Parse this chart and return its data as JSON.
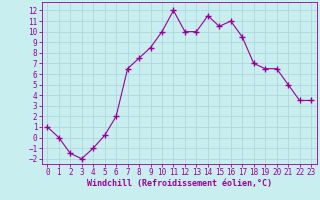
{
  "x": [
    0,
    1,
    2,
    3,
    4,
    5,
    6,
    7,
    8,
    9,
    10,
    11,
    12,
    13,
    14,
    15,
    16,
    17,
    18,
    19,
    20,
    21,
    22,
    23
  ],
  "y": [
    1.0,
    0.0,
    -1.5,
    -2.0,
    -1.0,
    0.2,
    2.0,
    6.5,
    7.5,
    8.5,
    10.0,
    12.0,
    10.0,
    10.0,
    11.5,
    10.5,
    11.0,
    9.5,
    7.0,
    6.5,
    6.5,
    5.0,
    3.5,
    3.5
  ],
  "line_color": "#990099",
  "marker": "+",
  "marker_size": 4,
  "marker_linewidth": 1.0,
  "line_width": 0.8,
  "bg_color": "#c8eef0",
  "grid_color": "#b0d8da",
  "xlabel": "Windchill (Refroidissement éolien,°C)",
  "xlabel_fontsize": 6.0,
  "tick_fontsize": 5.5,
  "ylim": [
    -2.5,
    12.8
  ],
  "xlim": [
    -0.5,
    23.5
  ],
  "yticks": [
    -2,
    -1,
    0,
    1,
    2,
    3,
    4,
    5,
    6,
    7,
    8,
    9,
    10,
    11,
    12
  ],
  "xticks": [
    0,
    1,
    2,
    3,
    4,
    5,
    6,
    7,
    8,
    9,
    10,
    11,
    12,
    13,
    14,
    15,
    16,
    17,
    18,
    19,
    20,
    21,
    22,
    23
  ]
}
